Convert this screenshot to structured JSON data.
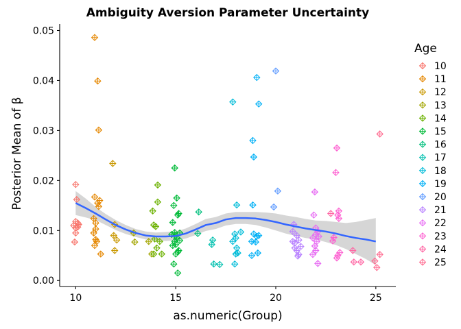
{
  "chart_data": {
    "type": "scatter",
    "title": "Ambiguity Aversion Parameter Uncertainty",
    "xlabel": "as.numeric(Group)",
    "ylabel": "Posterior Mean of β",
    "xlim": [
      9.2,
      26
    ],
    "ylim": [
      -0.0012,
      0.0513
    ],
    "xticks": [
      10,
      15,
      20,
      25
    ],
    "yticks": [
      0.0,
      0.01,
      0.02,
      0.03,
      0.04,
      0.05
    ],
    "ytick_labels": [
      "0.00",
      "0.01",
      "0.02",
      "0.03",
      "0.04",
      "0.05"
    ],
    "grid": false,
    "legend": {
      "title": "Age",
      "position": "right"
    },
    "marker": "diamond-plus (open)",
    "series": [
      {
        "name": "10",
        "color": "#F8766D",
        "points": [
          [
            9.9,
            0.011
          ],
          [
            10.0,
            0.0192
          ],
          [
            10.0,
            0.0118
          ],
          [
            10.05,
            0.0162
          ],
          [
            10.1,
            0.0115
          ],
          [
            10.0,
            0.0105
          ],
          [
            9.95,
            0.0077
          ],
          [
            10.15,
            0.0112
          ],
          [
            10.1,
            0.0107
          ],
          [
            10.0,
            0.0095
          ]
        ]
      },
      {
        "name": "11",
        "color": "#E58700",
        "points": [
          [
            10.95,
            0.0486
          ],
          [
            11.1,
            0.0399
          ],
          [
            11.15,
            0.0301
          ],
          [
            10.95,
            0.0167
          ],
          [
            11.1,
            0.0155
          ],
          [
            11.2,
            0.016
          ],
          [
            10.9,
            0.0124
          ],
          [
            11.0,
            0.0115
          ],
          [
            10.9,
            0.0095
          ],
          [
            11.0,
            0.0082
          ],
          [
            11.05,
            0.0078
          ],
          [
            10.95,
            0.007
          ],
          [
            11.25,
            0.0053
          ],
          [
            11.15,
            0.0148
          ],
          [
            11.0,
            0.0103
          ]
        ]
      },
      {
        "name": "12",
        "color": "#C99800",
        "points": [
          [
            11.85,
            0.0234
          ],
          [
            11.95,
            0.0112
          ],
          [
            11.9,
            0.009
          ],
          [
            12.05,
            0.0081
          ],
          [
            11.95,
            0.006
          ]
        ]
      },
      {
        "name": "13",
        "color": "#A3A500",
        "points": [
          [
            12.9,
            0.0095
          ],
          [
            12.95,
            0.0077
          ],
          [
            13.65,
            0.0078
          ],
          [
            13.8,
            0.0053
          ]
        ]
      },
      {
        "name": "14",
        "color": "#6BB100",
        "points": [
          [
            14.1,
            0.0191
          ],
          [
            14.1,
            0.0157
          ],
          [
            13.85,
            0.0139
          ],
          [
            13.9,
            0.0111
          ],
          [
            14.0,
            0.0108
          ],
          [
            13.95,
            0.0083
          ],
          [
            14.2,
            0.0078
          ],
          [
            14.05,
            0.0065
          ],
          [
            13.9,
            0.0053
          ],
          [
            14.3,
            0.0053
          ]
        ]
      },
      {
        "name": "15",
        "color": "#00BA38",
        "points": [
          [
            14.95,
            0.0225
          ],
          [
            15.05,
            0.0165
          ],
          [
            14.9,
            0.015
          ],
          [
            15.15,
            0.0134
          ],
          [
            15.1,
            0.0131
          ],
          [
            14.85,
            0.0116
          ],
          [
            14.95,
            0.0096
          ],
          [
            15.0,
            0.009
          ],
          [
            15.2,
            0.0095
          ],
          [
            15.05,
            0.0085
          ],
          [
            14.95,
            0.0078
          ],
          [
            14.85,
            0.007
          ],
          [
            15.1,
            0.0057
          ],
          [
            15.15,
            0.006
          ],
          [
            15.0,
            0.0053
          ],
          [
            14.9,
            0.0033
          ],
          [
            15.1,
            0.0015
          ],
          [
            15.0,
            0.0072
          ],
          [
            14.8,
            0.0092
          ],
          [
            15.2,
            0.008
          ]
        ]
      },
      {
        "name": "16",
        "color": "#00BF7D",
        "points": [
          [
            16.15,
            0.0137
          ],
          [
            16.1,
            0.0094
          ]
        ]
      },
      {
        "name": "17",
        "color": "#00C0AF",
        "points": [
          [
            16.85,
            0.0081
          ],
          [
            16.8,
            0.0072
          ],
          [
            16.9,
            0.0033
          ],
          [
            17.2,
            0.0032
          ]
        ]
      },
      {
        "name": "18",
        "color": "#00BCD8",
        "points": [
          [
            17.85,
            0.0357
          ],
          [
            18.05,
            0.0151
          ],
          [
            17.95,
            0.0093
          ],
          [
            18.0,
            0.0085
          ],
          [
            17.85,
            0.0078
          ],
          [
            18.25,
            0.0097
          ],
          [
            18.05,
            0.0065
          ],
          [
            18.0,
            0.0053
          ],
          [
            17.95,
            0.0033
          ],
          [
            18.1,
            0.0055
          ]
        ]
      },
      {
        "name": "19",
        "color": "#00B0F6",
        "points": [
          [
            19.05,
            0.0406
          ],
          [
            19.15,
            0.0353
          ],
          [
            18.85,
            0.028
          ],
          [
            18.9,
            0.0247
          ],
          [
            18.85,
            0.0151
          ],
          [
            18.9,
            0.0093
          ],
          [
            19.05,
            0.0088
          ],
          [
            19.15,
            0.009
          ],
          [
            19.0,
            0.0077
          ],
          [
            18.8,
            0.0078
          ],
          [
            19.1,
            0.0055
          ],
          [
            18.8,
            0.005
          ]
        ]
      },
      {
        "name": "20",
        "color": "#619CFF",
        "points": [
          [
            20.0,
            0.0419
          ],
          [
            20.1,
            0.0179
          ],
          [
            19.9,
            0.0147
          ]
        ]
      },
      {
        "name": "21",
        "color": "#B983FF",
        "points": [
          [
            20.9,
            0.0112
          ],
          [
            20.85,
            0.0098
          ],
          [
            21.05,
            0.009
          ],
          [
            21.15,
            0.0081
          ],
          [
            20.85,
            0.0078
          ],
          [
            21.25,
            0.0068
          ],
          [
            20.95,
            0.0065
          ],
          [
            21.05,
            0.006
          ],
          [
            21.15,
            0.0052
          ],
          [
            21.1,
            0.0049
          ],
          [
            20.95,
            0.0075
          ]
        ]
      },
      {
        "name": "22",
        "color": "#E76BF3",
        "points": [
          [
            21.95,
            0.0177
          ],
          [
            21.9,
            0.0131
          ],
          [
            22.0,
            0.0105
          ],
          [
            22.1,
            0.0098
          ],
          [
            22.0,
            0.0092
          ],
          [
            22.15,
            0.0088
          ],
          [
            21.85,
            0.0085
          ],
          [
            22.05,
            0.0078
          ],
          [
            21.95,
            0.0069
          ],
          [
            22.0,
            0.006
          ],
          [
            21.85,
            0.0052
          ],
          [
            22.1,
            0.0034
          ]
        ]
      },
      {
        "name": "23",
        "color": "#FD61D1",
        "points": [
          [
            23.05,
            0.0265
          ],
          [
            23.0,
            0.0216
          ],
          [
            23.15,
            0.0139
          ],
          [
            23.1,
            0.0131
          ],
          [
            23.15,
            0.0124
          ],
          [
            22.9,
            0.0086
          ],
          [
            22.85,
            0.0079
          ],
          [
            23.2,
            0.0056
          ],
          [
            23.1,
            0.005
          ],
          [
            23.05,
            0.0045
          ]
        ]
      },
      {
        "name": "24",
        "color": "#FF67A4",
        "points": [
          [
            22.75,
            0.0134
          ],
          [
            23.85,
            0.006
          ],
          [
            23.9,
            0.0037
          ],
          [
            24.25,
            0.0037
          ]
        ]
      },
      {
        "name": "25",
        "color": "#FF6C91",
        "points": [
          [
            25.2,
            0.0293
          ],
          [
            25.2,
            0.0052
          ],
          [
            24.95,
            0.0039
          ],
          [
            25.05,
            0.0026
          ]
        ]
      }
    ],
    "smooth": {
      "method": "loess",
      "color": "#3366FF",
      "band_color": "#999999",
      "x": [
        10,
        10.5,
        11,
        11.5,
        12,
        12.5,
        13,
        13.5,
        14,
        14.5,
        15,
        15.5,
        16,
        16.5,
        17,
        17.5,
        18,
        18.5,
        19,
        19.5,
        20,
        20.5,
        21,
        21.5,
        22,
        22.5,
        23,
        23.5,
        24,
        24.5,
        25
      ],
      "y": [
        0.0155,
        0.0145,
        0.0134,
        0.0122,
        0.0111,
        0.0102,
        0.0095,
        0.009,
        0.0088,
        0.0088,
        0.0089,
        0.0094,
        0.0102,
        0.0111,
        0.0115,
        0.0122,
        0.0125,
        0.0125,
        0.0124,
        0.0121,
        0.0117,
        0.0112,
        0.0108,
        0.0104,
        0.0101,
        0.0098,
        0.0094,
        0.0089,
        0.0085,
        0.0082,
        0.0078
      ],
      "lower": [
        0.0131,
        0.0126,
        0.0121,
        0.0111,
        0.0101,
        0.0093,
        0.0087,
        0.0082,
        0.008,
        0.0079,
        0.008,
        0.0084,
        0.0091,
        0.0099,
        0.0103,
        0.011,
        0.0113,
        0.0113,
        0.0111,
        0.0106,
        0.01,
        0.0094,
        0.0089,
        0.0085,
        0.0082,
        0.0077,
        0.0071,
        0.0063,
        0.0053,
        0.0043,
        0.0031
      ],
      "upper": [
        0.0179,
        0.0164,
        0.0147,
        0.0133,
        0.0121,
        0.0111,
        0.0103,
        0.0098,
        0.0096,
        0.0097,
        0.0098,
        0.0104,
        0.0113,
        0.0123,
        0.0127,
        0.0134,
        0.0137,
        0.0137,
        0.0137,
        0.0136,
        0.0134,
        0.013,
        0.0127,
        0.0123,
        0.012,
        0.0119,
        0.0117,
        0.0115,
        0.0117,
        0.0121,
        0.0125
      ]
    }
  }
}
